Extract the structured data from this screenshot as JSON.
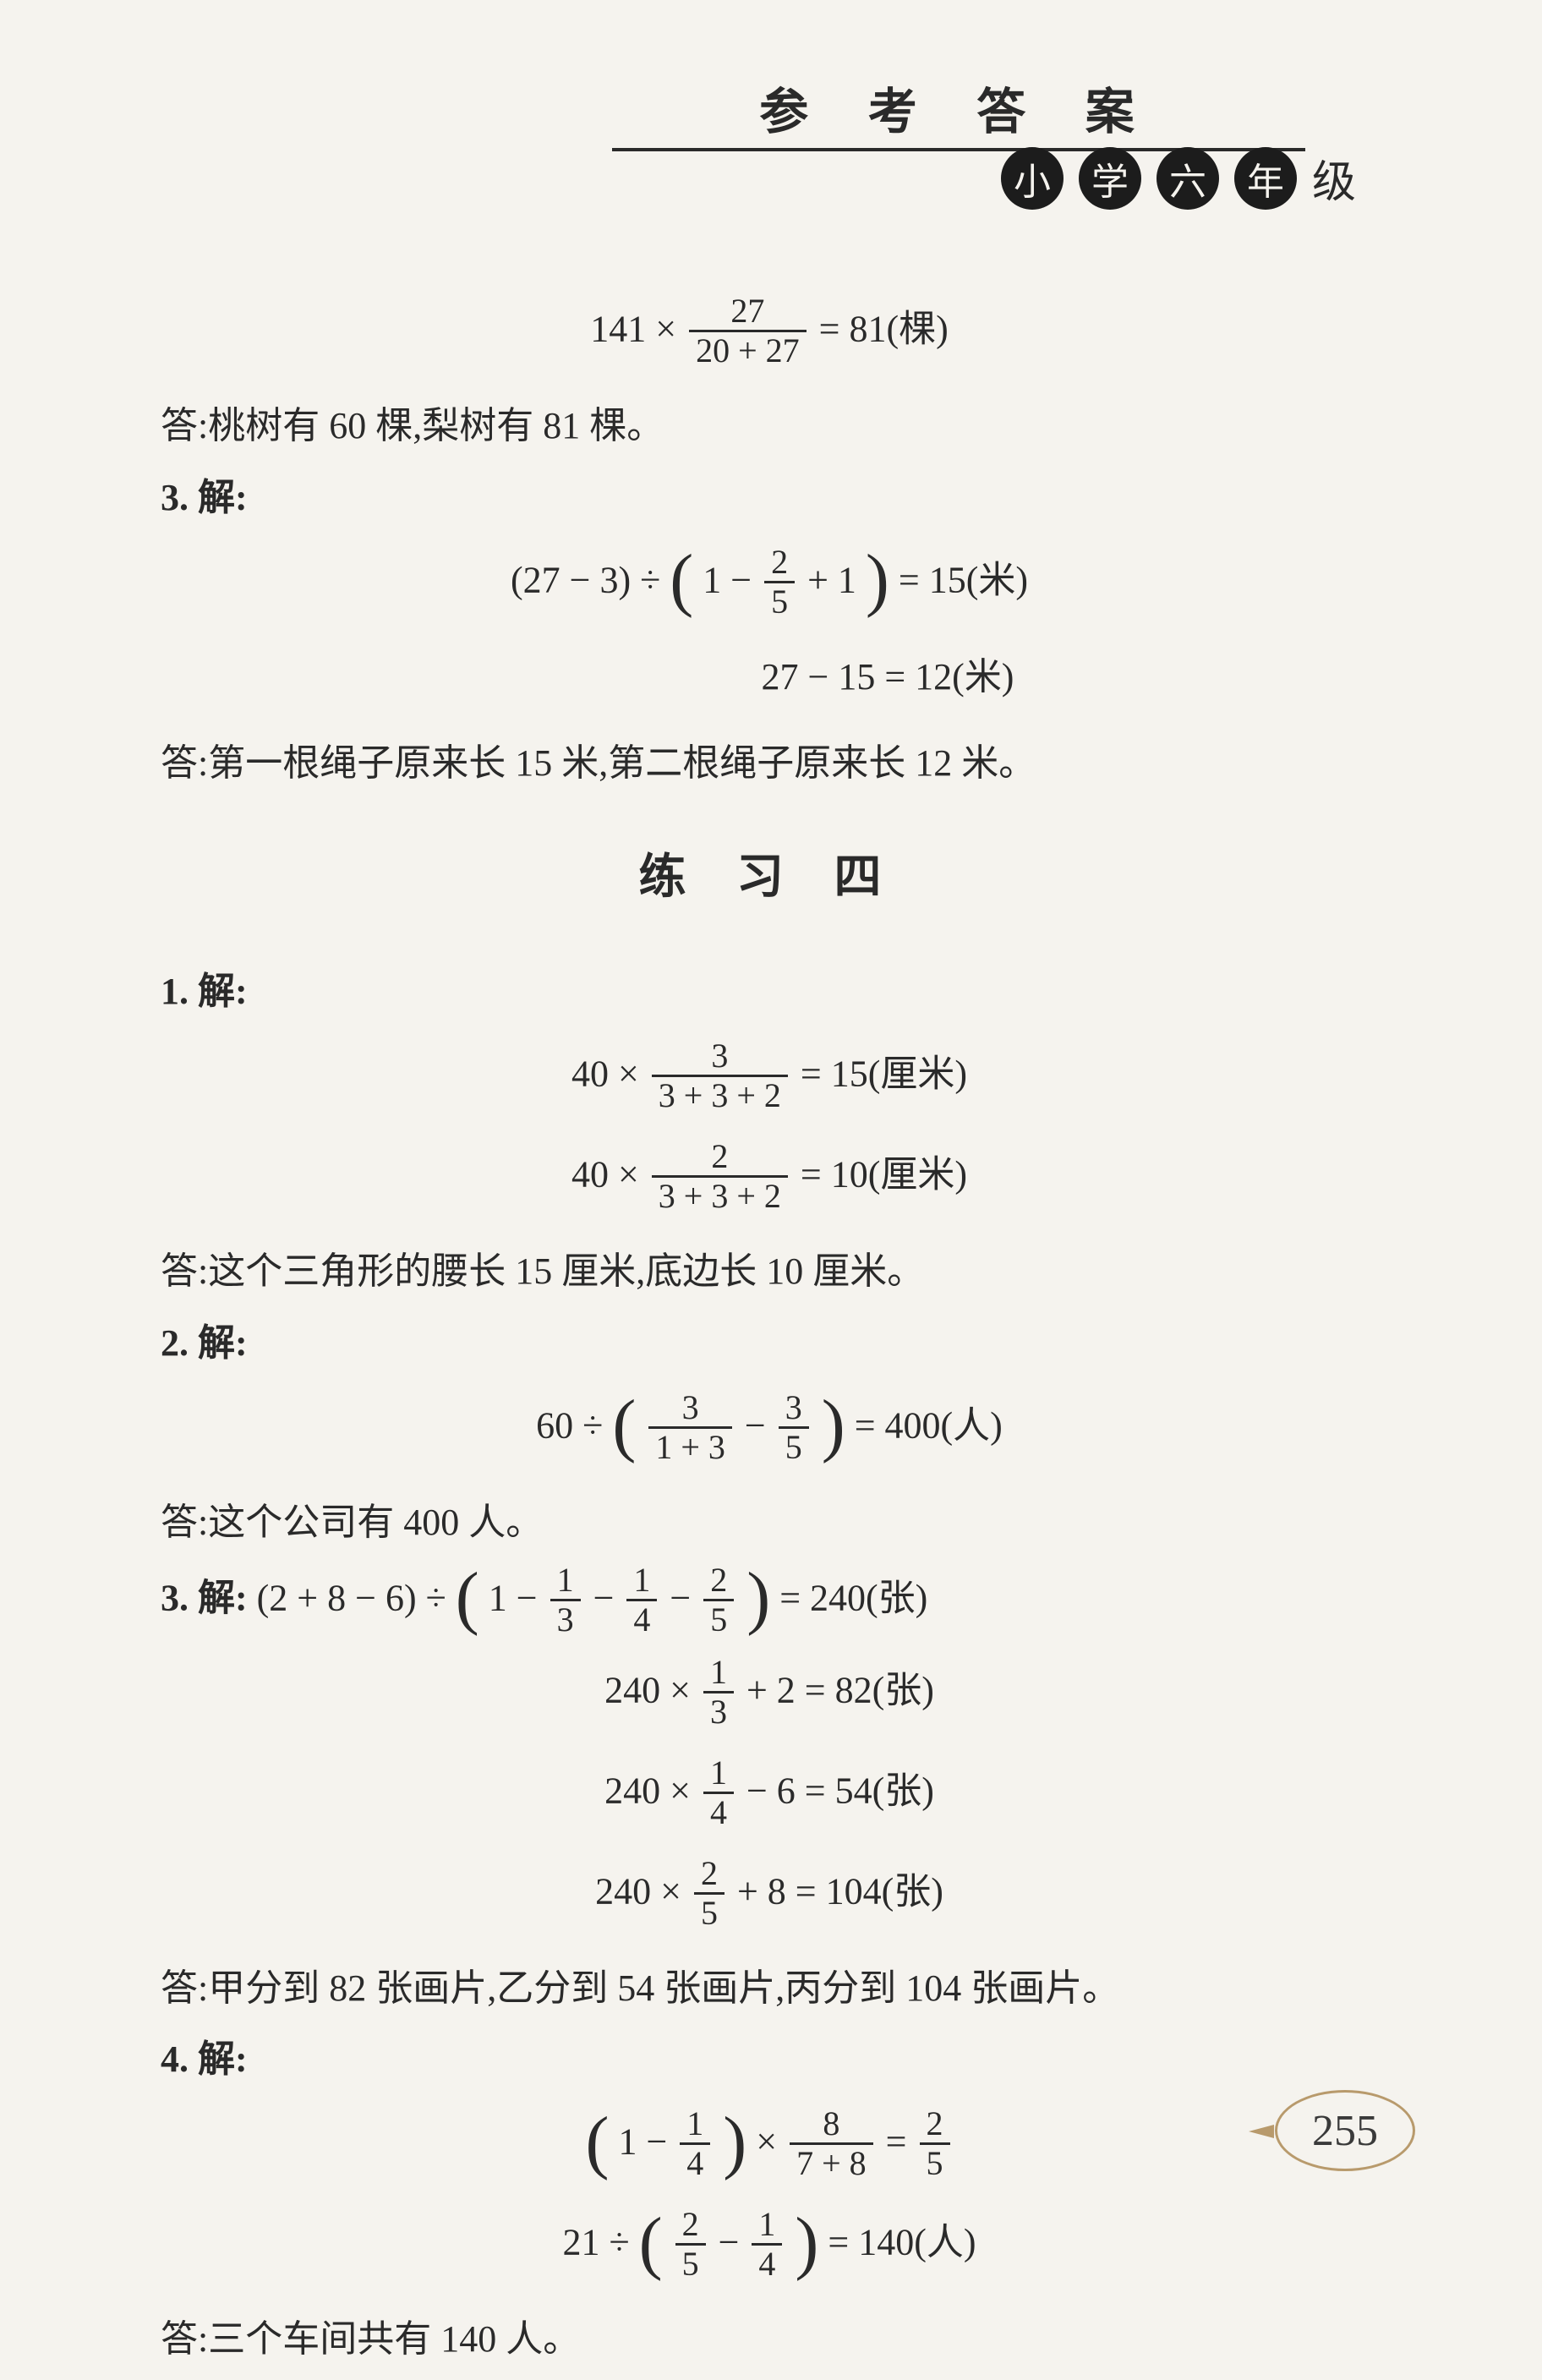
{
  "header": {
    "title": "参 考 答 案",
    "badges": [
      "小",
      "学",
      "六",
      "年"
    ],
    "badge_plain": "级"
  },
  "top": {
    "eq1_lhs_a": "141 ×",
    "eq1_frac_n": "27",
    "eq1_frac_d": "20 + 27",
    "eq1_rhs": " = 81(棵)",
    "ans1": "答:桃树有 60 棵,梨树有 81 棵。",
    "p3_label": "3. 解:",
    "eq2_lhs": "(27 − 3) ÷ ",
    "eq2_mid_a": "1 − ",
    "eq2_frac_n": "2",
    "eq2_frac_d": "5",
    "eq2_mid_b": " + 1",
    "eq2_rhs": " = 15(米)",
    "eq3": "27 − 15 = 12(米)",
    "ans2": "答:第一根绳子原来长 15 米,第二根绳子原来长 12 米。"
  },
  "section_title": "练 习 四",
  "ex4": {
    "p1_label": "1. 解:",
    "e1a_l": "40 × ",
    "e1a_n": "3",
    "e1a_d": "3 + 3 + 2",
    "e1a_r": " = 15(厘米)",
    "e1b_l": "40 × ",
    "e1b_n": "2",
    "e1b_d": "3 + 3 + 2",
    "e1b_r": " = 10(厘米)",
    "ans1": "答:这个三角形的腰长 15 厘米,底边长 10 厘米。",
    "p2_label": "2. 解:",
    "e2_l": "60 ÷ ",
    "e2_f1n": "3",
    "e2_f1d": "1 + 3",
    "e2_mid": " − ",
    "e2_f2n": "3",
    "e2_f2d": "5",
    "e2_r": " = 400(人)",
    "ans2": "答:这个公司有 400 人。",
    "p3_label": "3. 解:",
    "e3_l": "(2 + 8 − 6) ÷ ",
    "e3_a": "1 − ",
    "e3_f1n": "1",
    "e3_f1d": "3",
    "e3_b": " − ",
    "e3_f2n": "1",
    "e3_f2d": "4",
    "e3_c": " − ",
    "e3_f3n": "2",
    "e3_f3d": "5",
    "e3_r": " = 240(张)",
    "e3x1_l": "240 × ",
    "e3x1_n": "1",
    "e3x1_d": "3",
    "e3x1_r": " + 2 = 82(张)",
    "e3x2_l": "240 × ",
    "e3x2_n": "1",
    "e3x2_d": "4",
    "e3x2_r": " − 6 = 54(张)",
    "e3x3_l": "240 × ",
    "e3x3_n": "2",
    "e3x3_d": "5",
    "e3x3_r": " + 8 = 104(张)",
    "ans3": "答:甲分到 82 张画片,乙分到 54 张画片,丙分到 104 张画片。",
    "p4_label": "4. 解:",
    "e4a_a": "1 − ",
    "e4a_f1n": "1",
    "e4a_f1d": "4",
    "e4a_b": " × ",
    "e4a_f2n": "8",
    "e4a_f2d": "7 + 8",
    "e4a_c": " = ",
    "e4a_f3n": "2",
    "e4a_f3d": "5",
    "e4b_l": "21 ÷ ",
    "e4b_f1n": "2",
    "e4b_f1d": "5",
    "e4b_m": " − ",
    "e4b_f2n": "1",
    "e4b_f2d": "4",
    "e4b_r": " = 140(人)",
    "ans4": "答:三个车间共有 140 人。"
  },
  "page_number": "255"
}
